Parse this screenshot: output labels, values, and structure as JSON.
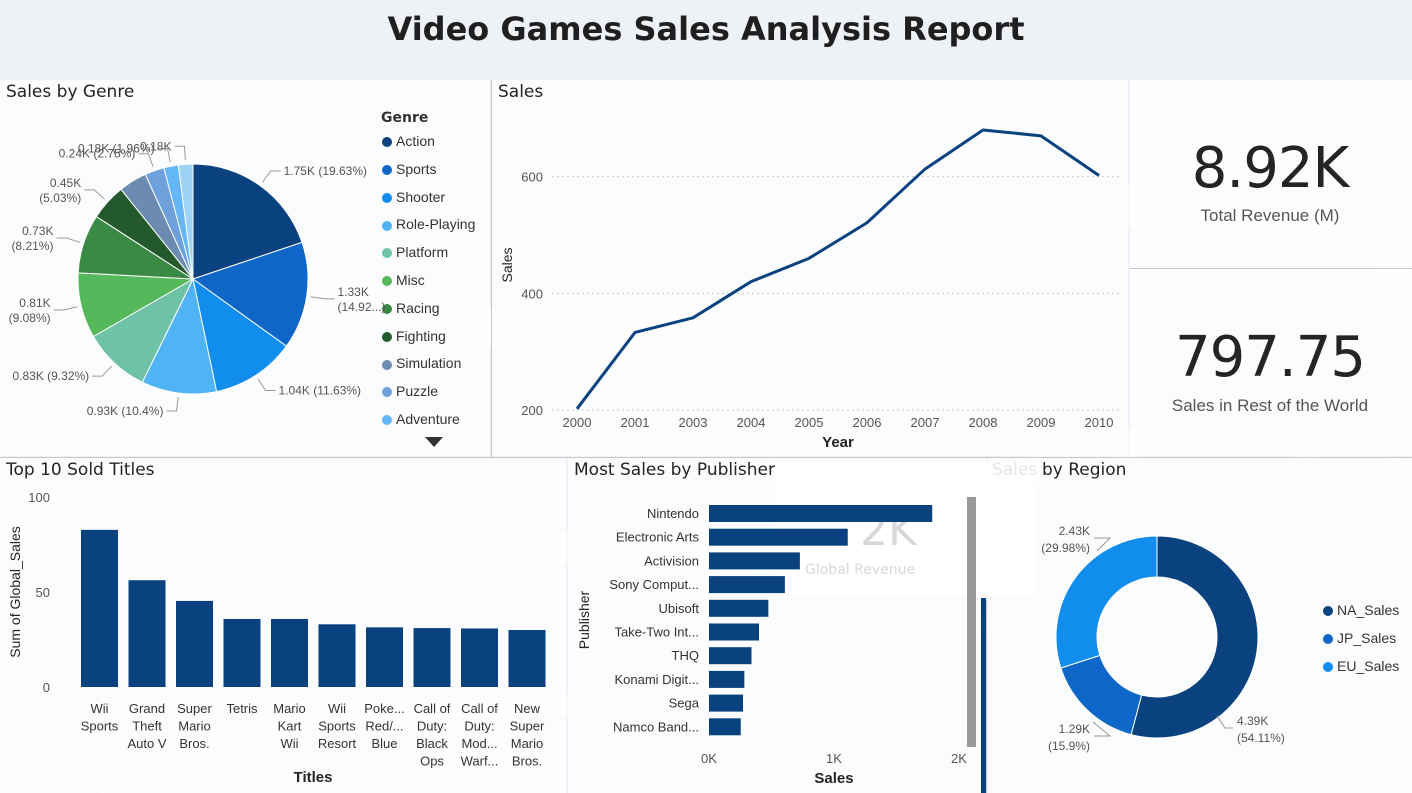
{
  "report": {
    "title": "Video Games Sales Analysis Report"
  },
  "kpis": [
    {
      "value": "8.92K",
      "label": "Total Revenue (M)"
    },
    {
      "value": "797.75",
      "label": "Sales in Rest of the World"
    }
  ],
  "chart_data": [
    {
      "id": "genre",
      "type": "pie",
      "title": "Sales by Genre",
      "legend_title": "Genre",
      "legend_position": "right",
      "slices": [
        {
          "label": "Action",
          "value": 1.75,
          "text": "1.75K (19.63%)",
          "color": "#0a4280"
        },
        {
          "label": "Sports",
          "value": 1.33,
          "text": "1.33K (14.92...)",
          "color": "#0e66c8"
        },
        {
          "label": "Shooter",
          "value": 1.04,
          "text": "1.04K (11.63%)",
          "color": "#118ded"
        },
        {
          "label": "Role-Playing",
          "value": 0.93,
          "text": "0.93K (10.4%)",
          "color": "#4fb3f5"
        },
        {
          "label": "Platform",
          "value": 0.83,
          "text": "0.83K (9.32%)",
          "color": "#6ec2a5"
        },
        {
          "label": "Misc",
          "value": 0.81,
          "text": "0.81K (9.08%)",
          "color": "#55b85a"
        },
        {
          "label": "Racing",
          "value": 0.73,
          "text": "0.73K (8.21%)",
          "color": "#3a8a45"
        },
        {
          "label": "Fighting",
          "value": 0.45,
          "text": "0.45K (5.03%)",
          "color": "#24592d"
        },
        {
          "label": "Simulation",
          "value": 0.35,
          "text": "",
          "color": "#6b8cb0"
        },
        {
          "label": "Puzzle",
          "value": 0.24,
          "text": "0.24K (2.75%)",
          "color": "#6ea1dc"
        },
        {
          "label": "Adventure",
          "value": 0.18,
          "text": "0.18K (1.96%)",
          "color": "#64b6f4"
        },
        {
          "label": "Strategy",
          "value": 0.18,
          "text": "0.18K",
          "color": "#9ed2f7"
        }
      ]
    },
    {
      "id": "sales-year",
      "type": "line",
      "title": "Sales",
      "xlabel": "Year",
      "ylabel": "Sales",
      "x": [
        "2000",
        "2001",
        "2003",
        "2004",
        "2005",
        "2006",
        "2007",
        "2008",
        "2009",
        "2010"
      ],
      "values": [
        202,
        333,
        358,
        420,
        460,
        521,
        613,
        680,
        670,
        602
      ],
      "ylim": [
        200,
        700
      ],
      "yticks": [
        200,
        400,
        600
      ],
      "grid": true,
      "color": "#0a4280"
    },
    {
      "id": "top-titles",
      "type": "bar",
      "title": "Top 10 Sold Titles",
      "xlabel": "Titles",
      "ylabel": "Sum of Global_Sales",
      "categories": [
        [
          "Wii",
          "Sports"
        ],
        [
          "Grand",
          "Theft",
          "Auto V"
        ],
        [
          "Super",
          "Mario",
          "Bros."
        ],
        [
          "Tetris"
        ],
        [
          "Mario",
          "Kart",
          "Wii"
        ],
        [
          "Wii",
          "Sports",
          "Resort"
        ],
        [
          "Poke...",
          "Red/...",
          "Blue"
        ],
        [
          "Call of",
          "Duty:",
          "Black",
          "Ops"
        ],
        [
          "Call of",
          "Duty:",
          "Mod...",
          "Warf..."
        ],
        [
          "New",
          "Super",
          "Mario",
          "Bros."
        ]
      ],
      "values": [
        82.7,
        56.2,
        45.3,
        35.8,
        35.8,
        33.0,
        31.4,
        31.0,
        30.8,
        30.0
      ],
      "ylim": [
        0,
        100
      ],
      "yticks": [
        0,
        50,
        100
      ],
      "color": "#0a4280"
    },
    {
      "id": "publisher",
      "type": "bar",
      "orientation": "horizontal",
      "title": "Most Sales by Publisher",
      "xlabel": "Sales",
      "ylabel": "Publisher",
      "categories": [
        "Nintendo",
        "Electronic Arts",
        "Activision",
        "Sony Comput...",
        "Ubisoft",
        "Take-Two Int...",
        "THQ",
        "Konami Digit...",
        "Sega",
        "Namco Band..."
      ],
      "values": [
        1786,
        1110,
        727,
        607,
        475,
        400,
        340,
        283,
        272,
        254
      ],
      "xlim": [
        0,
        2000
      ],
      "xticks": [
        "0K",
        "1K",
        "2K"
      ],
      "color": "#0a4280"
    },
    {
      "id": "region",
      "type": "pie",
      "donut": true,
      "title": "by Region",
      "title_partial": "Sales",
      "legend_position": "right",
      "slices": [
        {
          "label": "NA_Sales",
          "value": 4.39,
          "text_a": "4.39K",
          "text_b": "(54.11%)",
          "color": "#0a4280"
        },
        {
          "label": "JP_Sales",
          "value": 1.29,
          "text_a": "1.29K",
          "text_b": "(15.9%)",
          "color": "#0e66c8"
        },
        {
          "label": "EU_Sales",
          "value": 2.43,
          "text_a": "2.43K",
          "text_b": "(29.98%)",
          "color": "#118ded"
        }
      ]
    }
  ],
  "ghost": {
    "value": "2K",
    "label": "Global Revenue"
  }
}
